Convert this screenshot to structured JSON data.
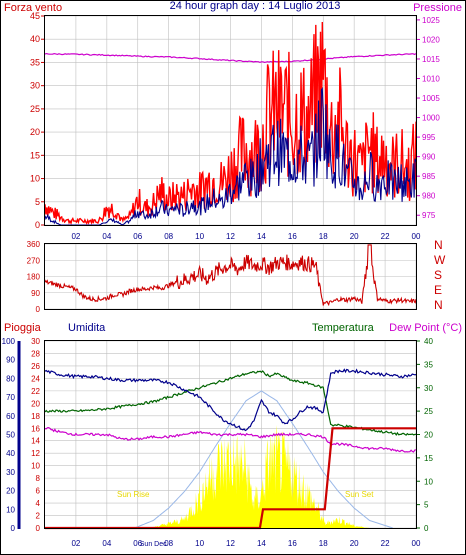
{
  "header": {
    "title": "24 hour graph day : 14 Luglio 2013",
    "left_label": "Forza vento",
    "right_label": "Pressione"
  },
  "direction_panel": {
    "compass": [
      "N",
      "W",
      "S",
      "E",
      "N"
    ]
  },
  "bottom_header": {
    "rain": "Pioggia",
    "humidity": "Umidita",
    "temperature": "Temperatura",
    "dewpoint": "Dew Point (°C)"
  },
  "annotations": {
    "sunrise": "Sun Rise",
    "sunset": "Sun Set",
    "sundec": "Sun Dec"
  },
  "colors": {
    "wind_gust": "#ff0000",
    "wind_avg": "#00008b",
    "pressure": "#cc00cc",
    "direction": "#cc0000",
    "humidity": "#00008b",
    "temperature": "#006400",
    "dewpoint": "#cc00cc",
    "rain": "#cc0000",
    "solar": "#ffff00",
    "sun_curve": "#9ab8e8",
    "grid": "#c0c0c0"
  },
  "chart_data": [
    {
      "type": "line",
      "name": "wind-pressure",
      "x_ticks": [
        "02",
        "04",
        "06",
        "08",
        "10",
        "12",
        "14",
        "16",
        "18",
        "20",
        "22",
        "00"
      ],
      "y_left_ticks": [
        "0",
        "5",
        "10",
        "15",
        "20",
        "25",
        "30",
        "35",
        "40",
        "45"
      ],
      "y_right_ticks": [
        "975",
        "980",
        "985",
        "990",
        "995",
        "1000",
        "1005",
        "1010",
        "1015",
        "1020",
        "1025"
      ],
      "ylim_left": [
        0,
        45
      ],
      "ylim_right": [
        972.5,
        1026
      ],
      "series": [
        {
          "key": "gust",
          "x": [
            0,
            0.5,
            1,
            1.5,
            2,
            2.5,
            3,
            3.5,
            4,
            4.5,
            5,
            5.5,
            6,
            6.5,
            7,
            7.5,
            8,
            8.5,
            9,
            9.5,
            10,
            10.5,
            11,
            11.5,
            12,
            12.5,
            13,
            13.5,
            14,
            14.5,
            15,
            15.5,
            16,
            16.5,
            17,
            17.5,
            18,
            18.5,
            19,
            19.5,
            20,
            20.5,
            21,
            21.5,
            22,
            22.5,
            23,
            23.5,
            24
          ],
          "values": [
            5,
            3,
            2,
            1,
            1,
            1,
            1,
            1,
            4,
            4,
            1,
            2,
            6,
            4,
            5,
            8,
            6,
            7,
            7,
            9,
            8,
            10,
            11,
            10,
            13,
            16,
            18,
            17,
            20,
            26,
            27,
            27,
            25,
            26,
            24,
            30,
            36,
            22,
            25,
            18,
            16,
            13,
            19,
            15,
            17,
            14,
            15,
            13,
            17
          ]
        },
        {
          "key": "avg",
          "x": [
            0,
            0.5,
            1,
            1.5,
            2,
            2.5,
            3,
            3.5,
            4,
            4.5,
            5,
            5.5,
            6,
            6.5,
            7,
            7.5,
            8,
            8.5,
            9,
            9.5,
            10,
            10.5,
            11,
            11.5,
            12,
            12.5,
            13,
            13.5,
            14,
            14.5,
            15,
            15.5,
            16,
            16.5,
            17,
            17.5,
            18,
            18.5,
            19,
            19.5,
            20,
            20.5,
            21,
            21.5,
            22,
            22.5,
            23,
            23.5,
            24
          ],
          "values": [
            2,
            1,
            0,
            0,
            0,
            0,
            0,
            0,
            1,
            1,
            0,
            1,
            3,
            2,
            3,
            4,
            3,
            4,
            3,
            5,
            4,
            5,
            6,
            5,
            8,
            9,
            11,
            10,
            14,
            16,
            17,
            16,
            15,
            16,
            14,
            17,
            25,
            14,
            17,
            11,
            10,
            8,
            12,
            9,
            11,
            9,
            10,
            9,
            11
          ]
        },
        {
          "key": "pressure",
          "x": [
            0,
            2,
            4,
            6,
            8,
            10,
            12,
            14,
            16,
            18,
            20,
            22,
            24
          ],
          "values": [
            1016.3,
            1016.2,
            1016.0,
            1015.7,
            1015.5,
            1015.1,
            1014.6,
            1014.2,
            1014.4,
            1015.0,
            1015.6,
            1016.0,
            1016.3
          ]
        }
      ]
    },
    {
      "type": "line",
      "name": "wind-direction",
      "x_ticks": [
        "02",
        "04",
        "06",
        "08",
        "10",
        "12",
        "14",
        "16",
        "18",
        "20",
        "22",
        "00"
      ],
      "y_ticks": [
        "0",
        "90",
        "180",
        "270",
        "360"
      ],
      "ylim": [
        0,
        360
      ],
      "x": [
        0,
        0.5,
        1,
        1.5,
        2,
        2.5,
        3,
        3.5,
        4,
        4.5,
        5,
        5.5,
        6,
        6.5,
        7,
        7.5,
        8,
        8.5,
        9,
        9.5,
        10,
        10.5,
        11,
        11.5,
        12,
        12.5,
        13,
        13.5,
        14,
        14.5,
        15,
        15.5,
        16,
        16.5,
        17,
        17.5,
        18,
        18.5,
        19,
        19.5,
        20,
        20.5,
        21,
        21.5,
        22,
        22.5,
        23,
        23.5,
        24
      ],
      "values": [
        150,
        140,
        130,
        120,
        110,
        70,
        55,
        55,
        60,
        80,
        80,
        100,
        110,
        110,
        120,
        115,
        130,
        150,
        160,
        180,
        190,
        170,
        200,
        230,
        240,
        220,
        260,
        240,
        250,
        230,
        255,
        260,
        250,
        260,
        250,
        240,
        30,
        35,
        55,
        50,
        60,
        40,
        355,
        60,
        45,
        45,
        50,
        40,
        45
      ]
    },
    {
      "type": "line",
      "name": "rain-humidity-temperature",
      "x_ticks": [
        "02",
        "04",
        "06",
        "08",
        "10",
        "12",
        "14",
        "16",
        "18",
        "20",
        "22",
        "00"
      ],
      "y_rain_ticks": [
        "0",
        "2",
        "4",
        "6",
        "8",
        "10",
        "12",
        "14",
        "16",
        "18",
        "20",
        "22",
        "24",
        "26",
        "28",
        "30"
      ],
      "y_humidity_ticks": [
        "0",
        "10",
        "20",
        "30",
        "40",
        "50",
        "60",
        "70",
        "80",
        "90",
        "100"
      ],
      "y_temp_ticks": [
        "0",
        "5",
        "10",
        "15",
        "20",
        "25",
        "30",
        "35",
        "40"
      ],
      "ylim_rain": [
        0,
        30
      ],
      "ylim_humidity": [
        0,
        100
      ],
      "ylim_temp": [
        0,
        40
      ],
      "series": [
        {
          "key": "humidity",
          "x": [
            0,
            1,
            2,
            3,
            4,
            5,
            6,
            7,
            8,
            9,
            10,
            10.5,
            11,
            11.5,
            12,
            12.5,
            13,
            13.5,
            14,
            14.5,
            15,
            15.5,
            16,
            16.5,
            17,
            17.5,
            18,
            18.5,
            19,
            20,
            21,
            22,
            23,
            24
          ],
          "values": [
            84,
            82,
            81,
            81,
            80,
            79,
            79,
            79,
            78,
            74,
            70,
            66,
            62,
            58,
            56,
            54,
            52,
            57,
            68,
            62,
            60,
            56,
            58,
            62,
            65,
            64,
            62,
            83,
            84,
            84,
            83,
            82,
            81,
            82
          ]
        },
        {
          "key": "temperature",
          "x": [
            0,
            1,
            2,
            3,
            4,
            5,
            6,
            7,
            8,
            9,
            10,
            11,
            12,
            13,
            14,
            14.5,
            15,
            16,
            17,
            18,
            18.5,
            19,
            20,
            21,
            22,
            23,
            24
          ],
          "values": [
            25,
            25,
            25,
            25.2,
            25.5,
            26,
            26.5,
            27,
            28,
            29,
            30,
            31,
            32,
            33,
            33.5,
            32.5,
            33,
            31.5,
            31,
            30,
            22,
            22,
            21.5,
            21,
            20.5,
            20,
            20
          ]
        },
        {
          "key": "dewpoint",
          "x": [
            0,
            1,
            2,
            3,
            4,
            5,
            6,
            7,
            8,
            9,
            10,
            11,
            12,
            13,
            14,
            15,
            16,
            17,
            18,
            18.5,
            19,
            20,
            21,
            22,
            23,
            24
          ],
          "values": [
            21.5,
            20.5,
            20,
            20,
            20,
            19,
            19,
            19.5,
            19.5,
            20,
            20.5,
            20,
            20,
            20,
            19.5,
            20,
            20,
            20,
            19.5,
            18,
            18,
            17.5,
            17,
            17,
            16.5,
            16.5
          ]
        },
        {
          "key": "rain",
          "x": [
            0,
            13.9,
            14.1,
            18.1,
            18.6,
            24
          ],
          "values": [
            0,
            0,
            3,
            3,
            16,
            16
          ]
        },
        {
          "key": "solar",
          "x": [
            7,
            8,
            9,
            10,
            10.5,
            11,
            12,
            13,
            13.5,
            14,
            14.5,
            15,
            16,
            17,
            17.7,
            18.1,
            19,
            20,
            21
          ],
          "values": [
            0.2,
            1,
            2,
            7,
            11,
            14,
            16,
            14,
            6,
            8,
            16,
            16,
            13,
            8,
            4,
            1,
            2,
            0.5,
            0
          ]
        },
        {
          "key": "sun",
          "x": [
            5.8,
            7,
            8,
            9,
            10,
            11,
            12,
            13,
            14,
            15,
            16,
            17,
            18,
            19,
            20,
            21,
            22.5
          ],
          "values": [
            0,
            1.2,
            3.2,
            5.8,
            9,
            13,
            16.8,
            20.4,
            22,
            20.4,
            16.8,
            13,
            9,
            5.8,
            3.2,
            1.2,
            0
          ]
        }
      ]
    }
  ]
}
